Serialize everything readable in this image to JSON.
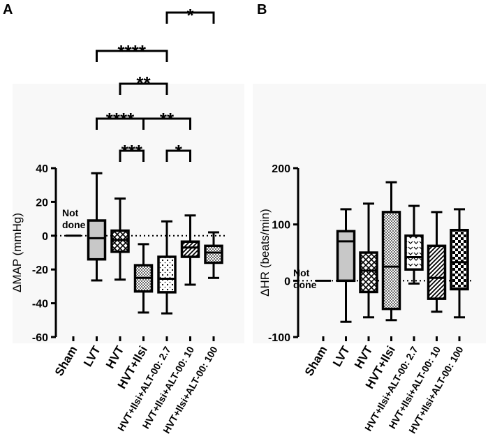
{
  "figure": {
    "panels": [
      {
        "label": "A"
      },
      {
        "label": "B"
      }
    ]
  },
  "chart_data": [
    {
      "type": "box",
      "panel": "A",
      "title": "",
      "xlabel": "",
      "ylabel": "ΔMAP (mmHg)",
      "ylim": [
        -60,
        40
      ],
      "yticks": [
        40,
        20,
        0,
        -20,
        -40,
        -60
      ],
      "reference_line": 0,
      "categories": [
        "Sham",
        "LVT",
        "HVT",
        "HVT+Ilsi",
        "HVT+Ilsi+ALT-00: 2.7",
        "HVT+Ilsi+ALT-00: 10",
        "HVT+Ilsi+ALT-00: 100"
      ],
      "annotations": [
        {
          "category": "Sham",
          "text_line1": "Not",
          "text_line2": "done"
        }
      ],
      "series": [
        {
          "category": "Sham",
          "min": 0,
          "q1": 0,
          "median": 0,
          "q3": 0,
          "max": 0,
          "fill": "none"
        },
        {
          "category": "LVT",
          "min": -26.5,
          "q1": -14,
          "median": -1.5,
          "q3": 9,
          "max": 37,
          "fill": "gray"
        },
        {
          "category": "HVT",
          "min": -26,
          "q1": -9.5,
          "median": -2.5,
          "q3": 3,
          "max": 22,
          "fill": "cross-hatch"
        },
        {
          "category": "HVT+Ilsi",
          "min": -45.5,
          "q1": -33,
          "median": -25,
          "q3": -17.5,
          "max": -5,
          "fill": "dots"
        },
        {
          "category": "HVT+Ilsi+ALT-00: 2.7",
          "min": -46,
          "q1": -33.5,
          "median": -25.5,
          "q3": -12.5,
          "max": 8.5,
          "fill": "sparse-dots"
        },
        {
          "category": "HVT+Ilsi+ALT-00: 10",
          "min": -29,
          "q1": -12.5,
          "median": -7,
          "q3": -3.5,
          "max": 12,
          "fill": "hatch"
        },
        {
          "category": "HVT+Ilsi+ALT-00: 100",
          "min": -25,
          "q1": -16,
          "median": -10,
          "q3": -6,
          "max": 2,
          "fill": "dots"
        }
      ],
      "significance": [
        {
          "from": "LVT",
          "to": "HVT+Ilsi+ALT-00: 2.7",
          "label": "****"
        },
        {
          "from": "HVT+Ilsi+ALT-00: 2.7",
          "to": "HVT+Ilsi+ALT-00: 100",
          "label": "*"
        },
        {
          "from": "HVT",
          "to": "HVT+Ilsi+ALT-00: 2.7",
          "label": "**"
        },
        {
          "from": "LVT",
          "to": "HVT+Ilsi",
          "label": "****"
        },
        {
          "from": "HVT+Ilsi",
          "to": "HVT+Ilsi+ALT-00: 10",
          "label": "**"
        },
        {
          "from": "HVT",
          "to": "HVT+Ilsi",
          "label": "***"
        },
        {
          "from": "HVT+Ilsi+ALT-00: 2.7",
          "to": "HVT+Ilsi+ALT-00: 10",
          "label": "*"
        }
      ]
    },
    {
      "type": "box",
      "panel": "B",
      "title": "",
      "xlabel": "",
      "ylabel": "ΔHR (beats/min)",
      "ylim": [
        -100,
        200
      ],
      "yticks": [
        200,
        100,
        0,
        -100
      ],
      "reference_line": 0,
      "categories": [
        "Sham",
        "LVT",
        "HVT",
        "HVT+Ilsi",
        "HVT+Ilsi+ALT-00: 2.7",
        "HVT+Ilsi+ALT-00: 10",
        "HVT+Ilsi+ALT-00: 100"
      ],
      "annotations": [
        {
          "category": "Sham",
          "text_line1": "Not",
          "text_line2": "done"
        }
      ],
      "series": [
        {
          "category": "Sham",
          "min": 0,
          "q1": 0,
          "median": 0,
          "q3": 0,
          "max": 0,
          "fill": "none"
        },
        {
          "category": "LVT",
          "min": -73,
          "q1": 0,
          "median": 70,
          "q3": 88,
          "max": 127,
          "fill": "gray"
        },
        {
          "category": "HVT",
          "min": -65,
          "q1": -20,
          "median": 18,
          "q3": 50,
          "max": 137,
          "fill": "cross-hatch"
        },
        {
          "category": "HVT+Ilsi",
          "min": -70,
          "q1": -50,
          "median": 25,
          "q3": 122,
          "max": 175,
          "fill": "dots"
        },
        {
          "category": "HVT+Ilsi+ALT-00: 2.7",
          "min": -5,
          "q1": 20,
          "median": 42,
          "q3": 80,
          "max": 133,
          "fill": "chevron"
        },
        {
          "category": "HVT+Ilsi+ALT-00: 10",
          "min": -55,
          "q1": -32,
          "median": 5,
          "q3": 62,
          "max": 122,
          "fill": "hatch"
        },
        {
          "category": "HVT+Ilsi+ALT-00: 100",
          "min": -65,
          "q1": -15,
          "median": 33,
          "q3": 90,
          "max": 127,
          "fill": "checker"
        }
      ]
    }
  ]
}
